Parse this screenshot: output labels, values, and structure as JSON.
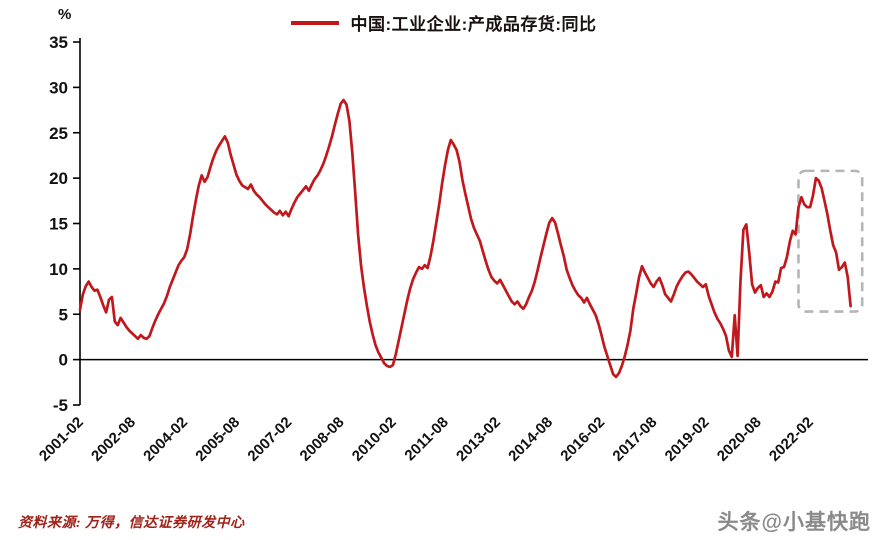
{
  "source": "资料来源: 万得，信达证券研发中心",
  "watermark": "头条@小基快跑",
  "chart_data": {
    "type": "line",
    "title": "中国:工业企业:产成品存货:同比",
    "ylabel": "%",
    "ylim": [
      -5,
      35
    ],
    "ytick_step": 5,
    "grid": false,
    "legend_position": "top-center",
    "x_start": "2001-02",
    "x_frequency": "monthly",
    "x_tick_interval_months": 18,
    "x_tick_labels": [
      "2001-02",
      "2002-08",
      "2004-02",
      "2005-08",
      "2007-02",
      "2008-08",
      "2010-02",
      "2011-08",
      "2013-02",
      "2014-08",
      "2016-02",
      "2017-08",
      "2019-02",
      "2020-08",
      "2022-02"
    ],
    "series": [
      {
        "name": "中国:工业企业:产成品存货:同比",
        "color": "#c0181c",
        "monthly_values": [
          5.5,
          7.2,
          8.1,
          8.6,
          8.0,
          7.6,
          7.7,
          6.9,
          6.0,
          5.2,
          6.6,
          6.9,
          4.2,
          3.8,
          4.6,
          4.1,
          3.6,
          3.2,
          2.9,
          2.6,
          2.3,
          2.7,
          2.4,
          2.3,
          2.6,
          3.5,
          4.3,
          5.0,
          5.6,
          6.2,
          7.0,
          8.0,
          8.8,
          9.6,
          10.4,
          10.9,
          11.3,
          12.2,
          13.8,
          15.8,
          17.6,
          19.2,
          20.3,
          19.6,
          20.1,
          21.2,
          22.2,
          23.0,
          23.6,
          24.1,
          24.6,
          23.9,
          22.6,
          21.5,
          20.4,
          19.7,
          19.2,
          19.0,
          18.8,
          19.3,
          18.6,
          18.2,
          17.9,
          17.5,
          17.1,
          16.8,
          16.5,
          16.2,
          16.0,
          16.4,
          15.9,
          16.3,
          15.8,
          16.6,
          17.3,
          17.9,
          18.3,
          18.7,
          19.1,
          18.6,
          19.3,
          19.9,
          20.3,
          20.9,
          21.6,
          22.5,
          23.5,
          24.6,
          25.9,
          27.1,
          28.2,
          28.6,
          28.1,
          26.3,
          22.8,
          18.4,
          13.8,
          10.4,
          8.0,
          6.0,
          4.2,
          2.8,
          1.6,
          0.8,
          0.2,
          -0.4,
          -0.7,
          -0.8,
          -0.6,
          0.6,
          2.1,
          3.6,
          5.1,
          6.6,
          7.9,
          8.9,
          9.6,
          10.2,
          10.0,
          10.4,
          10.1,
          11.4,
          13.1,
          15.1,
          17.1,
          19.4,
          21.4,
          23.1,
          24.2,
          23.7,
          23.1,
          21.8,
          19.8,
          18.3,
          16.9,
          15.5,
          14.5,
          13.8,
          13.1,
          12.0,
          10.9,
          9.9,
          9.1,
          8.7,
          8.4,
          8.8,
          8.2,
          7.6,
          7.0,
          6.4,
          6.1,
          6.4,
          5.9,
          5.6,
          6.1,
          6.9,
          7.6,
          8.6,
          9.9,
          11.3,
          12.6,
          13.9,
          15.1,
          15.6,
          15.1,
          13.9,
          12.6,
          11.4,
          9.9,
          9.0,
          8.2,
          7.6,
          7.1,
          6.8,
          6.3,
          6.8,
          6.1,
          5.5,
          4.9,
          3.9,
          2.7,
          1.4,
          0.4,
          -0.6,
          -1.6,
          -1.9,
          -1.5,
          -0.7,
          0.3,
          1.6,
          3.2,
          5.6,
          7.3,
          9.1,
          10.3,
          9.6,
          9.0,
          8.4,
          8.0,
          8.6,
          9.0,
          8.2,
          7.2,
          6.8,
          6.4,
          7.2,
          8.1,
          8.7,
          9.2,
          9.6,
          9.7,
          9.4,
          9.0,
          8.6,
          8.3,
          8.0,
          8.3,
          7.0,
          6.1,
          5.2,
          4.5,
          4.0,
          3.4,
          2.6,
          1.0,
          0.3,
          4.9,
          0.4,
          8.7,
          14.3,
          14.9,
          11.8,
          8.3,
          7.4,
          7.9,
          8.2,
          6.9,
          7.3,
          6.9,
          7.5,
          8.6,
          8.5,
          10.1,
          10.2,
          11.3,
          13.0,
          14.2,
          13.8,
          16.8,
          17.9,
          17.1,
          16.8,
          16.8,
          18.1,
          20.0,
          19.7,
          18.9,
          17.5,
          16.0,
          14.2,
          12.6,
          11.8,
          9.9,
          10.2,
          10.7,
          9.1,
          5.9
        ]
      }
    ],
    "highlight_box": {
      "start_month_index": 248,
      "end_month_index": 270,
      "y_min": 5.3,
      "y_max": 20.8,
      "style": "gray-dashed-rounded"
    }
  }
}
